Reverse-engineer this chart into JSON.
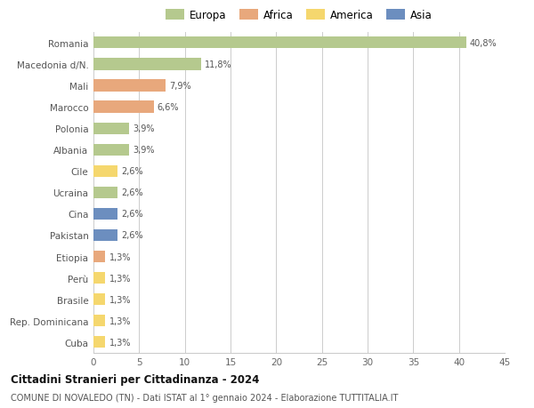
{
  "categories": [
    "Romania",
    "Macedonia d/N.",
    "Mali",
    "Marocco",
    "Polonia",
    "Albania",
    "Cile",
    "Ucraina",
    "Cina",
    "Pakistan",
    "Etiopia",
    "Perù",
    "Brasile",
    "Rep. Dominicana",
    "Cuba"
  ],
  "values": [
    40.8,
    11.8,
    7.9,
    6.6,
    3.9,
    3.9,
    2.6,
    2.6,
    2.6,
    2.6,
    1.3,
    1.3,
    1.3,
    1.3,
    1.3
  ],
  "labels": [
    "40,8%",
    "11,8%",
    "7,9%",
    "6,6%",
    "3,9%",
    "3,9%",
    "2,6%",
    "2,6%",
    "2,6%",
    "2,6%",
    "1,3%",
    "1,3%",
    "1,3%",
    "1,3%",
    "1,3%"
  ],
  "colors": [
    "#b5c98e",
    "#b5c98e",
    "#e8a87c",
    "#e8a87c",
    "#b5c98e",
    "#b5c98e",
    "#f5d76e",
    "#b5c98e",
    "#6c8ebf",
    "#6c8ebf",
    "#e8a87c",
    "#f5d76e",
    "#f5d76e",
    "#f5d76e",
    "#f5d76e"
  ],
  "legend": [
    {
      "label": "Europa",
      "color": "#b5c98e"
    },
    {
      "label": "Africa",
      "color": "#e8a87c"
    },
    {
      "label": "America",
      "color": "#f5d76e"
    },
    {
      "label": "Asia",
      "color": "#6c8ebf"
    }
  ],
  "xlim": [
    0,
    45
  ],
  "xticks": [
    0,
    5,
    10,
    15,
    20,
    25,
    30,
    35,
    40,
    45
  ],
  "title": "Cittadini Stranieri per Cittadinanza - 2024",
  "subtitle": "COMUNE DI NOVALEDO (TN) - Dati ISTAT al 1° gennaio 2024 - Elaborazione TUTTITALIA.IT",
  "bg_color": "#ffffff",
  "grid_color": "#cccccc",
  "bar_height": 0.55
}
